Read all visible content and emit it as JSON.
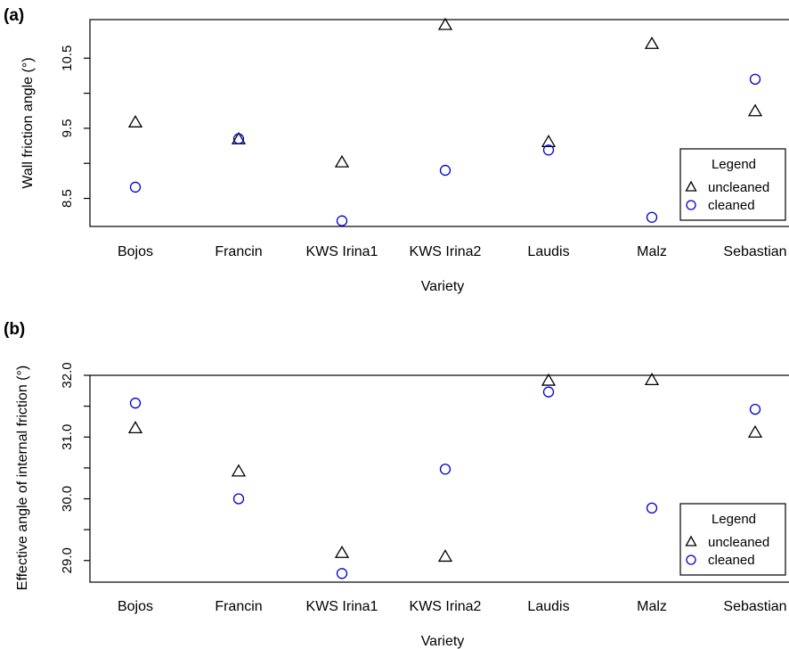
{
  "chart_data": [
    {
      "panel_label": "(a)",
      "type": "scatter",
      "xlabel": "Variety",
      "ylabel": "Wall friction angle  (°)",
      "categories": [
        "Bojos",
        "Francin",
        "KWS Irina1",
        "KWS Irina2",
        "Laudis",
        "Malz",
        "Sebastian"
      ],
      "yticks": [
        "8.5",
        "9.5",
        "10.5"
      ],
      "ylim": [
        8.1,
        11.05
      ],
      "series": [
        {
          "name": "uncleaned",
          "marker": "triangle",
          "color": "#000000",
          "values": [
            9.59,
            9.35,
            9.02,
            10.98,
            9.31,
            10.71,
            9.75
          ]
        },
        {
          "name": "cleaned",
          "marker": "circle",
          "color": "#0000cc",
          "values": [
            8.66,
            9.35,
            8.18,
            8.9,
            9.19,
            8.23,
            10.2
          ]
        }
      ],
      "legend": {
        "title": "Legend",
        "position": "bottom-right"
      }
    },
    {
      "panel_label": "(b)",
      "type": "scatter",
      "xlabel": "Variety",
      "ylabel": "Effective angle of internal friction  (°)",
      "categories": [
        "Bojos",
        "Francin",
        "KWS Irina1",
        "KWS Irina2",
        "Laudis",
        "Malz",
        "Sebastian"
      ],
      "yticks": [
        "29.0",
        "30.0",
        "31.0",
        "32.0"
      ],
      "ylim": [
        28.65,
        32.0
      ],
      "series": [
        {
          "name": "uncleaned",
          "marker": "triangle",
          "color": "#000000",
          "values": [
            31.15,
            30.45,
            29.13,
            29.07,
            31.92,
            31.93,
            31.08
          ]
        },
        {
          "name": "cleaned",
          "marker": "circle",
          "color": "#0000cc",
          "values": [
            31.55,
            30.0,
            28.79,
            30.48,
            31.73,
            29.85,
            31.45
          ]
        }
      ],
      "legend": {
        "title": "Legend",
        "position": "bottom-right"
      }
    }
  ]
}
